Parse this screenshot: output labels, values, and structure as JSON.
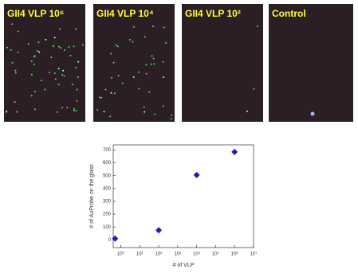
{
  "panels": [
    {
      "label": "GII4 VLP 10⁶"
    },
    {
      "label": "GII4 VLP 10⁴"
    },
    {
      "label": "GII4 VLP 10²"
    },
    {
      "label": "Control"
    }
  ],
  "chart_data": {
    "type": "scatter",
    "x_label": "# of VLP",
    "y_label": "# of AuProbe on the glass",
    "x_log": true,
    "series": [
      {
        "name": "AuProbe count",
        "color": "#1f1fb4",
        "x": [
          0.5,
          100,
          10000,
          1000000
        ],
        "values": [
          10,
          75,
          505,
          685
        ]
      }
    ],
    "xlim": [
      0.4,
      10000000
    ],
    "xticks": [
      {
        "value": 1,
        "label": "10⁰"
      },
      {
        "value": 10,
        "label": "10¹"
      },
      {
        "value": 100,
        "label": "10²"
      },
      {
        "value": 1000,
        "label": "10³"
      },
      {
        "value": 10000,
        "label": "10⁴"
      },
      {
        "value": 100000,
        "label": "10⁵"
      },
      {
        "value": 1000000,
        "label": "10⁶"
      },
      {
        "value": 10000000,
        "label": "10⁷"
      }
    ],
    "ylim": [
      -60,
      740
    ],
    "yticks": [
      0,
      100,
      200,
      300,
      400,
      500,
      600,
      700
    ]
  }
}
